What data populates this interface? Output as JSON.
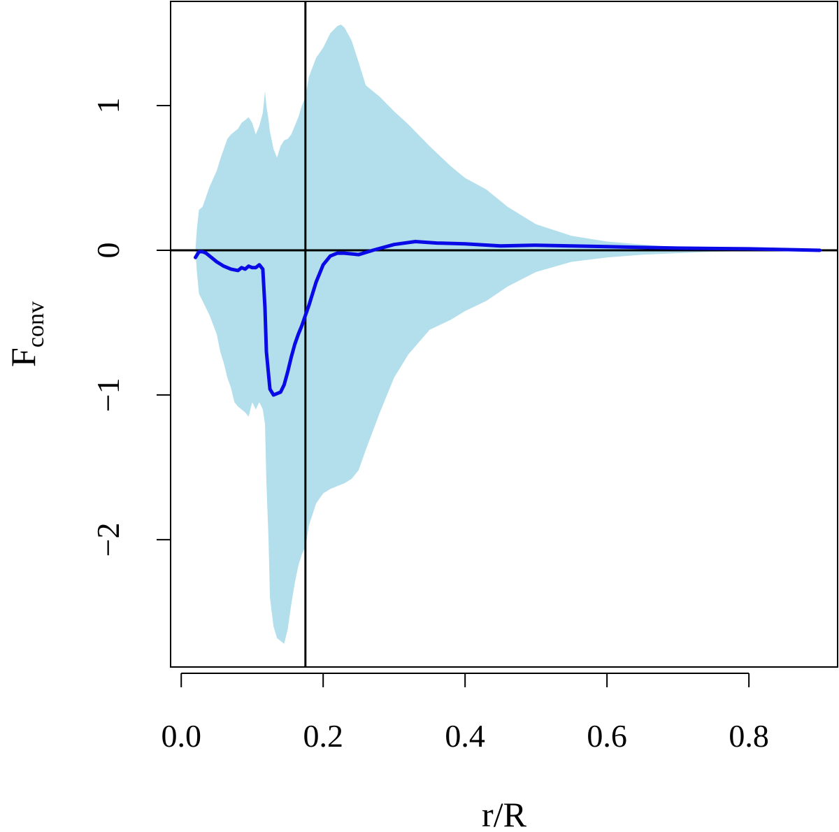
{
  "chart_data": {
    "type": "area",
    "title": "",
    "xlabel": "r/R",
    "ylabel_main": "F",
    "ylabel_sub": "conv",
    "xlim": [
      -0.015,
      0.925
    ],
    "ylim": [
      -2.88,
      1.72
    ],
    "xticks": [
      0.0,
      0.2,
      0.4,
      0.6,
      0.8
    ],
    "xtick_labels": [
      "0.0",
      "0.2",
      "0.4",
      "0.6",
      "0.8"
    ],
    "yticks": [
      -2,
      -1,
      0,
      1
    ],
    "ytick_labels": [
      "−2",
      "−1",
      "0",
      "1"
    ],
    "grid": false,
    "reference_lines": {
      "vertical_x": 0.175,
      "horizontal_y": 0
    },
    "colors": {
      "band": "#b2dfeb",
      "line": "#0a0ae6",
      "reference": "#000000"
    },
    "series": [
      {
        "kind": "band",
        "x": [
          0.02,
          0.022,
          0.025,
          0.03,
          0.04,
          0.05,
          0.055,
          0.06,
          0.065,
          0.07,
          0.075,
          0.08,
          0.085,
          0.09,
          0.095,
          0.1,
          0.105,
          0.11,
          0.115,
          0.118,
          0.12,
          0.123,
          0.125,
          0.13,
          0.135,
          0.14,
          0.145,
          0.15,
          0.155,
          0.16,
          0.165,
          0.17,
          0.175,
          0.18,
          0.19,
          0.2,
          0.21,
          0.22,
          0.225,
          0.23,
          0.24,
          0.25,
          0.26,
          0.28,
          0.3,
          0.32,
          0.35,
          0.38,
          0.4,
          0.43,
          0.46,
          0.5,
          0.55,
          0.6,
          0.65,
          0.7,
          0.75,
          0.8,
          0.85,
          0.9
        ],
        "upper": [
          0.0,
          0.15,
          0.28,
          0.3,
          0.44,
          0.55,
          0.63,
          0.7,
          0.77,
          0.8,
          0.82,
          0.84,
          0.88,
          0.9,
          0.92,
          0.88,
          0.8,
          0.86,
          0.95,
          1.1,
          1.0,
          0.9,
          0.82,
          0.7,
          0.64,
          0.72,
          0.76,
          0.77,
          0.8,
          0.86,
          0.92,
          1.0,
          1.06,
          1.2,
          1.33,
          1.4,
          1.5,
          1.55,
          1.56,
          1.54,
          1.45,
          1.3,
          1.14,
          1.06,
          0.96,
          0.87,
          0.72,
          0.58,
          0.5,
          0.42,
          0.3,
          0.18,
          0.1,
          0.06,
          0.04,
          0.02,
          0.01,
          0.005,
          0.005,
          0.0
        ],
        "lower": [
          0.0,
          -0.15,
          -0.3,
          -0.35,
          -0.45,
          -0.58,
          -0.7,
          -0.78,
          -0.88,
          -0.95,
          -1.05,
          -1.08,
          -1.1,
          -1.12,
          -1.15,
          -1.05,
          -1.1,
          -1.05,
          -1.1,
          -1.2,
          -1.6,
          -2.0,
          -2.4,
          -2.6,
          -2.68,
          -2.7,
          -2.72,
          -2.62,
          -2.45,
          -2.3,
          -2.18,
          -2.1,
          -2.05,
          -1.9,
          -1.75,
          -1.68,
          -1.65,
          -1.63,
          -1.62,
          -1.61,
          -1.58,
          -1.52,
          -1.38,
          -1.12,
          -0.88,
          -0.72,
          -0.55,
          -0.48,
          -0.42,
          -0.35,
          -0.25,
          -0.15,
          -0.08,
          -0.05,
          -0.03,
          -0.02,
          -0.01,
          -0.005,
          -0.005,
          0.0
        ]
      },
      {
        "kind": "line",
        "x": [
          0.02,
          0.025,
          0.03,
          0.035,
          0.04,
          0.05,
          0.06,
          0.07,
          0.08,
          0.085,
          0.09,
          0.095,
          0.1,
          0.105,
          0.11,
          0.115,
          0.118,
          0.12,
          0.125,
          0.13,
          0.135,
          0.14,
          0.145,
          0.15,
          0.155,
          0.16,
          0.165,
          0.17,
          0.175,
          0.18,
          0.19,
          0.2,
          0.21,
          0.22,
          0.23,
          0.25,
          0.27,
          0.3,
          0.33,
          0.36,
          0.4,
          0.45,
          0.5,
          0.6,
          0.7,
          0.8,
          0.9
        ],
        "values": [
          -0.05,
          -0.01,
          -0.01,
          -0.02,
          -0.04,
          -0.08,
          -0.11,
          -0.13,
          -0.14,
          -0.12,
          -0.13,
          -0.11,
          -0.12,
          -0.12,
          -0.1,
          -0.13,
          -0.4,
          -0.7,
          -0.96,
          -1.0,
          -0.99,
          -0.98,
          -0.93,
          -0.84,
          -0.74,
          -0.65,
          -0.58,
          -0.52,
          -0.45,
          -0.38,
          -0.22,
          -0.1,
          -0.04,
          -0.02,
          -0.02,
          -0.03,
          0.0,
          0.04,
          0.06,
          0.05,
          0.045,
          0.03,
          0.035,
          0.025,
          0.015,
          0.01,
          0.0
        ]
      }
    ]
  }
}
